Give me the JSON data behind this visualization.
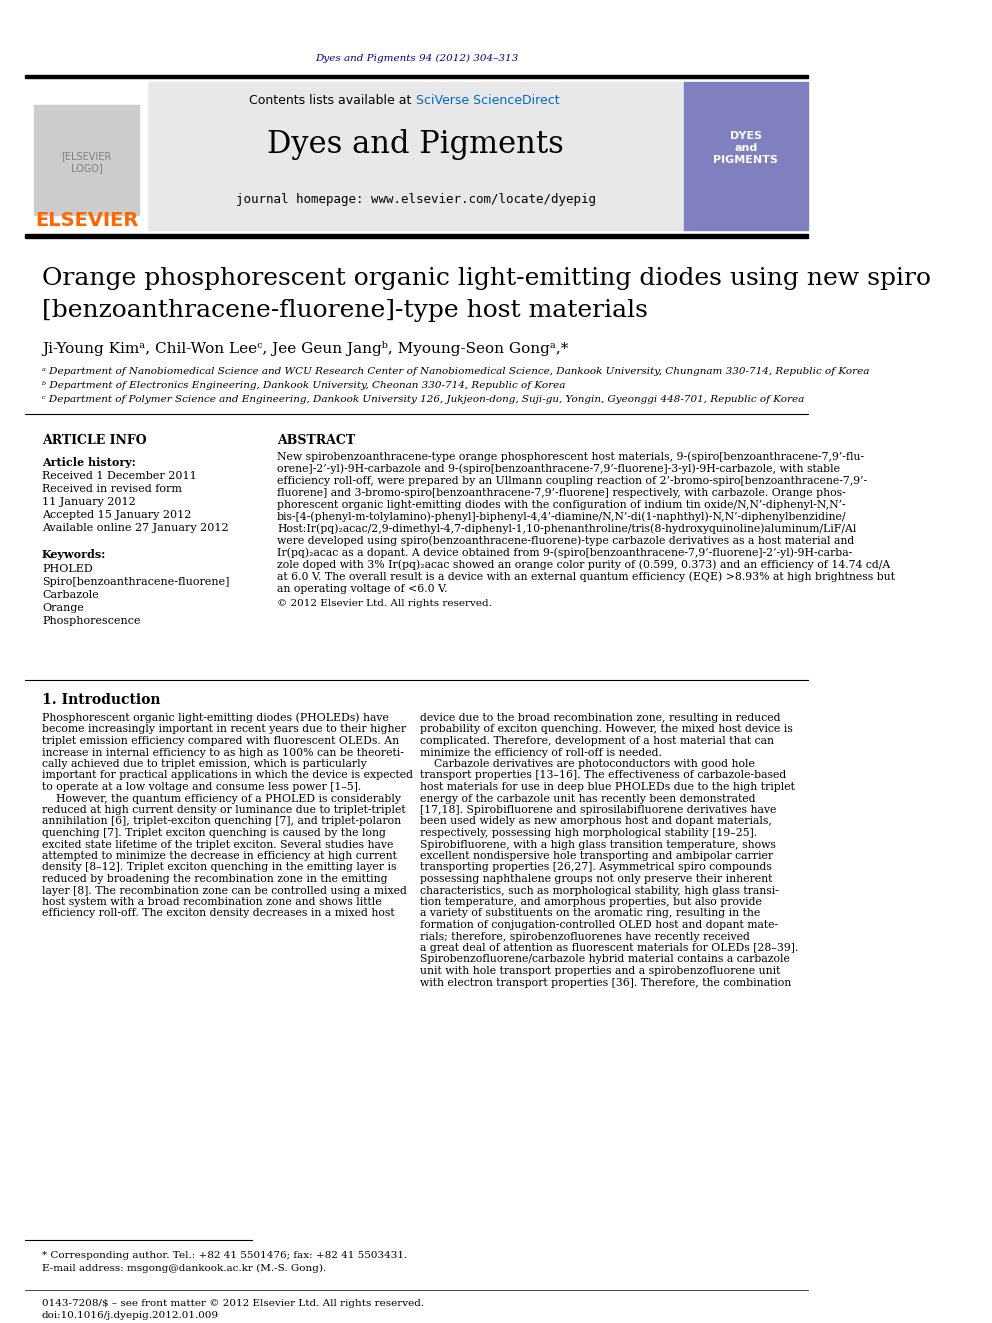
{
  "journal_ref": "Dyes and Pigments 94 (2012) 304–313",
  "journal_name": "Dyes and Pigments",
  "journal_homepage": "journal homepage: www.elsevier.com/locate/dyepig",
  "contents_text": "Contents lists available at ",
  "sciverse_text": "SciVerse ScienceDirect",
  "paper_title_line1": "Orange phosphorescent organic light-emitting diodes using new spiro",
  "paper_title_line2": "[benzoanthracene-fluorene]-type host materials",
  "authors": "Ji-Young Kimᵃ, Chil-Won Leeᶜ, Jee Geun Jangᵇ, Myoung-Seon Gongᵃ,*",
  "affil_a": "ᵃ Department of Nanobiomedical Science and WCU Research Center of Nanobiomedical Science, Dankook University, Chungnam 330-714, Republic of Korea",
  "affil_b": "ᵇ Department of Electronics Engineering, Dankook University, Cheonan 330-714, Republic of Korea",
  "affil_c": "ᶜ Department of Polymer Science and Engineering, Dankook University 126, Jukjeon-dong, Suji-gu, Yongin, Gyeonggi 448-701, Republic of Korea",
  "article_info_header": "ARTICLE INFO",
  "article_history_header": "Article history:",
  "received1": "Received 1 December 2011",
  "received_revised": "Received in revised form",
  "received_revised2": "11 January 2012",
  "accepted": "Accepted 15 January 2012",
  "available": "Available online 27 January 2012",
  "keywords_header": "Keywords:",
  "keywords": [
    "PHOLED",
    "Spiro[benzoanthracene-fluorene]",
    "Carbazole",
    "Orange",
    "Phosphorescence"
  ],
  "abstract_header": "ABSTRACT",
  "abstract_text": "New spirobenzoanthracene-type orange phosphorescent host materials, 9-(spiro[benzoanthracene-7,9’-flu-\norene]-2’-yl)-9H-carbazole and 9-(spiro[benzoanthracene-7,9’-fluorene]-3-yl)-9H-carbazole, with stable\nefficiency roll-off, were prepared by an Ullmann coupling reaction of 2’-bromo-spiro[benzoanthracene-7,9’-\nfluorene] and 3-bromo-spiro[benzoanthracene-7,9’-fluorene] respectively, with carbazole. Orange phos-\nphorescent organic light-emitting diodes with the configuration of indium tin oxide/N,N’-diphenyl-N,N’-\nbis-[4-(phenyl-m-tolylamino)-phenyl]-biphenyl-4,4’-diamine/N,N’-di(1-naphthyl)-N,N’-diphenylbenzidine/\nHost:Ir(pq)₂acac/2,9-dimethyl-4,7-diphenyl-1,10-phenanthroline/tris(8-hydroxyquinoline)aluminum/LiF/Al\nwere developed using spiro(benzoanthracene-fluorene)-type carbazole derivatives as a host material and\nIr(pq)₂acac as a dopant. A device obtained from 9-(spiro[benzoanthracene-7,9’-fluorene]-2’-yl)-9H-carba-\nzole doped with 3% Ir(pq)₂acac showed an orange color purity of (0.599, 0.373) and an efficiency of 14.74 cd/A\nat 6.0 V. The overall result is a device with an external quantum efficiency (EQE) >8.93% at high brightness but\nan operating voltage of <6.0 V.",
  "copyright": "© 2012 Elsevier Ltd. All rights reserved.",
  "section1_header": "1. Introduction",
  "intro_col1": "Phosphorescent organic light-emitting diodes (PHOLEDs) have\nbecome increasingly important in recent years due to their higher\ntriplet emission efficiency compared with fluorescent OLEDs. An\nincrease in internal efficiency to as high as 100% can be theoreti-\ncally achieved due to triplet emission, which is particularly\nimportant for practical applications in which the device is expected\nto operate at a low voltage and consume less power [1–5].\n    However, the quantum efficiency of a PHOLED is considerably\nreduced at high current density or luminance due to triplet-triplet\nannihilation [6], triplet-exciton quenching [7], and triplet-polaron\nquenching [7]. Triplet exciton quenching is caused by the long\nexcited state lifetime of the triplet exciton. Several studies have\nattempted to minimize the decrease in efficiency at high current\ndensity [8–12]. Triplet exciton quenching in the emitting layer is\nreduced by broadening the recombination zone in the emitting\nlayer [8]. The recombination zone can be controlled using a mixed\nhost system with a broad recombination zone and shows little\nefficiency roll-off. The exciton density decreases in a mixed host",
  "intro_col2": "device due to the broad recombination zone, resulting in reduced\nprobability of exciton quenching. However, the mixed host device is\ncomplicated. Therefore, development of a host material that can\nminimize the efficiency of roll-off is needed.\n    Carbazole derivatives are photoconductors with good hole\ntransport properties [13–16]. The effectiveness of carbazole-based\nhost materials for use in deep blue PHOLEDs due to the high triplet\nenergy of the carbazole unit has recently been demonstrated\n[17,18]. Spirobifluorene and spirosilabifluorene derivatives have\nbeen used widely as new amorphous host and dopant materials,\nrespectively, possessing high morphological stability [19–25].\nSpirobifluorene, with a high glass transition temperature, shows\nexcellent nondispersive hole transporting and ambipolar carrier\ntransporting properties [26,27]. Asymmetrical spiro compounds\npossessing naphthalene groups not only preserve their inherent\ncharacteristics, such as morphological stability, high glass transi-\ntion temperature, and amorphous properties, but also provide\na variety of substituents on the aromatic ring, resulting in the\nformation of conjugation-controlled OLED host and dopant mate-\nrials; therefore, spirobenzofluorenes have recently received\na great deal of attention as fluorescent materials for OLEDs [28–39].\nSpirobenzofluorene/carbazole hybrid material contains a carbazole\nunit with hole transport properties and a spirobenzofluorene unit\nwith electron transport properties [36]. Therefore, the combination",
  "footnote_star": "* Corresponding author. Tel.: +82 41 5501476; fax: +82 41 5503431.",
  "footnote_email": "E-mail address: msgong@dankook.ac.kr (M.-S. Gong).",
  "footer_issn": "0143-7208/$ – see front matter © 2012 Elsevier Ltd. All rights reserved.",
  "footer_doi": "doi:10.1016/j.dyepig.2012.01.009",
  "header_color": "#00008B",
  "sciverse_color": "#0066CC",
  "elsevier_color": "#FF6600",
  "journal_bg_color": "#E8E8E8",
  "journal_cover_color": "#8080C0"
}
